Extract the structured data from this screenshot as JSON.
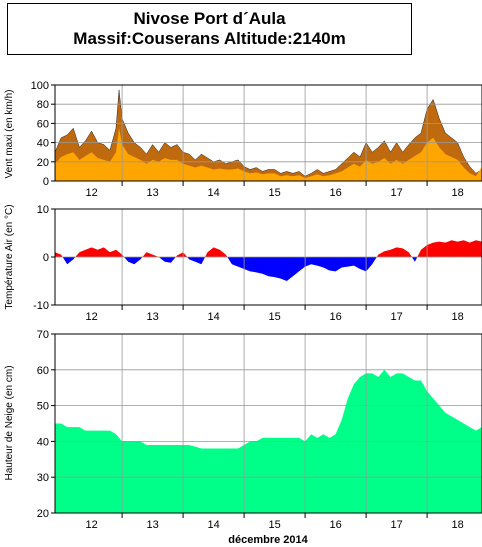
{
  "header": {
    "title": "Nivose Port d´Aula",
    "subtitle": "Massif:Couserans Altitude:2140m"
  },
  "colors": {
    "wind_max": "#c06a10",
    "wind_mean": "#ffa500",
    "temp_positive": "#ff0000",
    "temp_negative": "#0000ff",
    "snow_fill": "#00ff88",
    "grid": "#999999"
  },
  "chart_data": [
    {
      "type": "area",
      "ylabel": "Vent maxi (en km/h)",
      "ylim": [
        0,
        100
      ],
      "yticks": [
        0,
        20,
        40,
        60,
        80,
        100
      ],
      "xlim": [
        11.4,
        18.4
      ],
      "xticks": [
        12,
        13,
        14,
        15,
        16,
        17,
        18
      ],
      "grid": true,
      "series": [
        {
          "x": [
            11.4,
            11.5,
            11.6,
            11.7,
            11.8,
            11.9,
            12.0,
            12.1,
            12.2,
            12.3,
            12.4,
            12.45,
            12.5,
            12.6,
            12.7,
            12.8,
            12.9,
            13.0,
            13.1,
            13.2,
            13.3,
            13.4,
            13.5,
            13.6,
            13.7,
            13.8,
            13.9,
            14.0,
            14.1,
            14.2,
            14.3,
            14.4,
            14.5,
            14.6,
            14.7,
            14.8,
            14.9,
            15.0,
            15.1,
            15.2,
            15.3,
            15.4,
            15.5,
            15.6,
            15.7,
            15.8,
            15.9,
            16.0,
            16.1,
            16.2,
            16.3,
            16.4,
            16.5,
            16.6,
            16.7,
            16.8,
            16.9,
            17.0,
            17.1,
            17.2,
            17.3,
            17.4,
            17.5,
            17.6,
            17.7,
            17.8,
            17.9,
            18.0,
            18.1,
            18.2,
            18.3,
            18.4
          ],
          "values": [
            30,
            45,
            48,
            55,
            35,
            42,
            52,
            40,
            38,
            32,
            55,
            95,
            65,
            50,
            40,
            35,
            28,
            38,
            30,
            40,
            35,
            38,
            30,
            28,
            22,
            28,
            24,
            20,
            22,
            18,
            20,
            22,
            15,
            12,
            14,
            10,
            12,
            12,
            8,
            10,
            8,
            10,
            5,
            8,
            12,
            8,
            10,
            12,
            18,
            24,
            30,
            25,
            40,
            30,
            35,
            42,
            30,
            40,
            30,
            38,
            45,
            50,
            75,
            85,
            65,
            50,
            45,
            40,
            25,
            15,
            8,
            12
          ]
        },
        {
          "x": [
            11.4,
            11.5,
            11.6,
            11.7,
            11.8,
            11.9,
            12.0,
            12.1,
            12.2,
            12.3,
            12.4,
            12.45,
            12.5,
            12.6,
            12.7,
            12.8,
            12.9,
            13.0,
            13.1,
            13.2,
            13.3,
            13.4,
            13.5,
            13.6,
            13.7,
            13.8,
            13.9,
            14.0,
            14.1,
            14.2,
            14.3,
            14.4,
            14.5,
            14.6,
            14.7,
            14.8,
            14.9,
            15.0,
            15.1,
            15.2,
            15.3,
            15.4,
            15.5,
            15.6,
            15.7,
            15.8,
            15.9,
            16.0,
            16.1,
            16.2,
            16.3,
            16.4,
            16.5,
            16.6,
            16.7,
            16.8,
            16.9,
            17.0,
            17.1,
            17.2,
            17.3,
            17.4,
            17.5,
            17.6,
            17.7,
            17.8,
            17.9,
            18.0,
            18.1,
            18.2,
            18.3,
            18.4
          ],
          "values": [
            18,
            25,
            28,
            30,
            22,
            26,
            30,
            24,
            22,
            20,
            30,
            55,
            38,
            28,
            25,
            22,
            18,
            22,
            20,
            24,
            22,
            22,
            18,
            16,
            14,
            16,
            14,
            12,
            13,
            12,
            12,
            13,
            10,
            8,
            9,
            7,
            8,
            8,
            5,
            6,
            5,
            6,
            3,
            5,
            7,
            5,
            6,
            8,
            10,
            14,
            18,
            15,
            22,
            18,
            20,
            24,
            18,
            22,
            18,
            22,
            26,
            30,
            40,
            45,
            35,
            28,
            25,
            22,
            14,
            8,
            5,
            15
          ]
        }
      ]
    },
    {
      "type": "area",
      "ylabel": "Température Air (en °C)",
      "ylim": [
        -10,
        10
      ],
      "yticks": [
        -10,
        0,
        10
      ],
      "xlim": [
        11.4,
        18.4
      ],
      "xticks": [
        12,
        13,
        14,
        15,
        16,
        17,
        18
      ],
      "grid": true,
      "x": [
        11.4,
        11.5,
        11.6,
        11.7,
        11.8,
        11.9,
        12.0,
        12.1,
        12.2,
        12.3,
        12.4,
        12.5,
        12.6,
        12.7,
        12.8,
        12.9,
        13.0,
        13.1,
        13.2,
        13.3,
        13.4,
        13.5,
        13.6,
        13.7,
        13.8,
        13.9,
        14.0,
        14.1,
        14.2,
        14.3,
        14.4,
        14.5,
        14.6,
        14.7,
        14.8,
        14.9,
        15.0,
        15.1,
        15.2,
        15.3,
        15.4,
        15.5,
        15.6,
        15.7,
        15.8,
        15.9,
        16.0,
        16.1,
        16.2,
        16.3,
        16.4,
        16.5,
        16.6,
        16.7,
        16.8,
        16.9,
        17.0,
        17.1,
        17.2,
        17.3,
        17.4,
        17.5,
        17.6,
        17.7,
        17.8,
        17.9,
        18.0,
        18.1,
        18.2,
        18.3,
        18.4
      ],
      "values": [
        1,
        0.5,
        -1.5,
        -0.5,
        1,
        1.5,
        2,
        1.5,
        2,
        1,
        1.5,
        0.5,
        -1,
        -1.5,
        -0.5,
        1,
        0.5,
        0,
        -1,
        -1.2,
        0.3,
        1,
        -0.5,
        -1,
        -1.5,
        1,
        2,
        1.5,
        0.5,
        -1.5,
        -2,
        -2.5,
        -3,
        -3.2,
        -3.5,
        -4,
        -4.2,
        -4.5,
        -5,
        -4,
        -3,
        -2,
        -1.5,
        -1.8,
        -2.2,
        -2.8,
        -3,
        -2.2,
        -2,
        -1.8,
        -2.5,
        -3,
        -1.5,
        0.5,
        1.2,
        1.5,
        2,
        1.8,
        1,
        -1,
        1.5,
        2.5,
        3,
        3.2,
        3,
        3.5,
        3.2,
        3.5,
        3,
        3.5,
        3.2
      ]
    },
    {
      "type": "area",
      "ylabel": "Hauteur de Neige (en cm)",
      "xlabel": "décembre 2014",
      "ylim": [
        20,
        70
      ],
      "yticks": [
        20,
        30,
        40,
        50,
        60,
        70
      ],
      "xlim": [
        11.4,
        18.4
      ],
      "xticks": [
        12,
        13,
        14,
        15,
        16,
        17,
        18
      ],
      "grid": true,
      "x": [
        11.4,
        11.5,
        11.6,
        11.7,
        11.8,
        11.9,
        12.0,
        12.1,
        12.2,
        12.3,
        12.4,
        12.5,
        12.6,
        12.7,
        12.8,
        12.9,
        13.0,
        13.2,
        13.4,
        13.6,
        13.8,
        13.9,
        14.0,
        14.1,
        14.2,
        14.3,
        14.4,
        14.5,
        14.6,
        14.7,
        14.8,
        14.9,
        15.0,
        15.2,
        15.4,
        15.5,
        15.6,
        15.7,
        15.8,
        15.9,
        16.0,
        16.1,
        16.2,
        16.3,
        16.4,
        16.5,
        16.6,
        16.7,
        16.8,
        16.9,
        17.0,
        17.1,
        17.2,
        17.3,
        17.4,
        17.5,
        17.6,
        17.7,
        17.8,
        17.9,
        18.0,
        18.1,
        18.2,
        18.3,
        18.4
      ],
      "values": [
        45,
        45,
        44,
        44,
        44,
        43,
        43,
        43,
        43,
        43,
        42,
        40,
        40,
        40,
        40,
        39,
        39,
        39,
        39,
        39,
        38,
        38,
        38,
        38,
        38,
        38,
        38,
        39,
        40,
        40,
        41,
        41,
        41,
        41,
        41,
        40,
        42,
        41,
        42,
        41,
        42,
        46,
        52,
        56,
        58,
        59,
        59,
        58,
        60,
        58,
        59,
        59,
        58,
        57,
        57,
        54,
        52,
        50,
        48,
        47,
        46,
        45,
        44,
        43,
        44
      ]
    }
  ]
}
